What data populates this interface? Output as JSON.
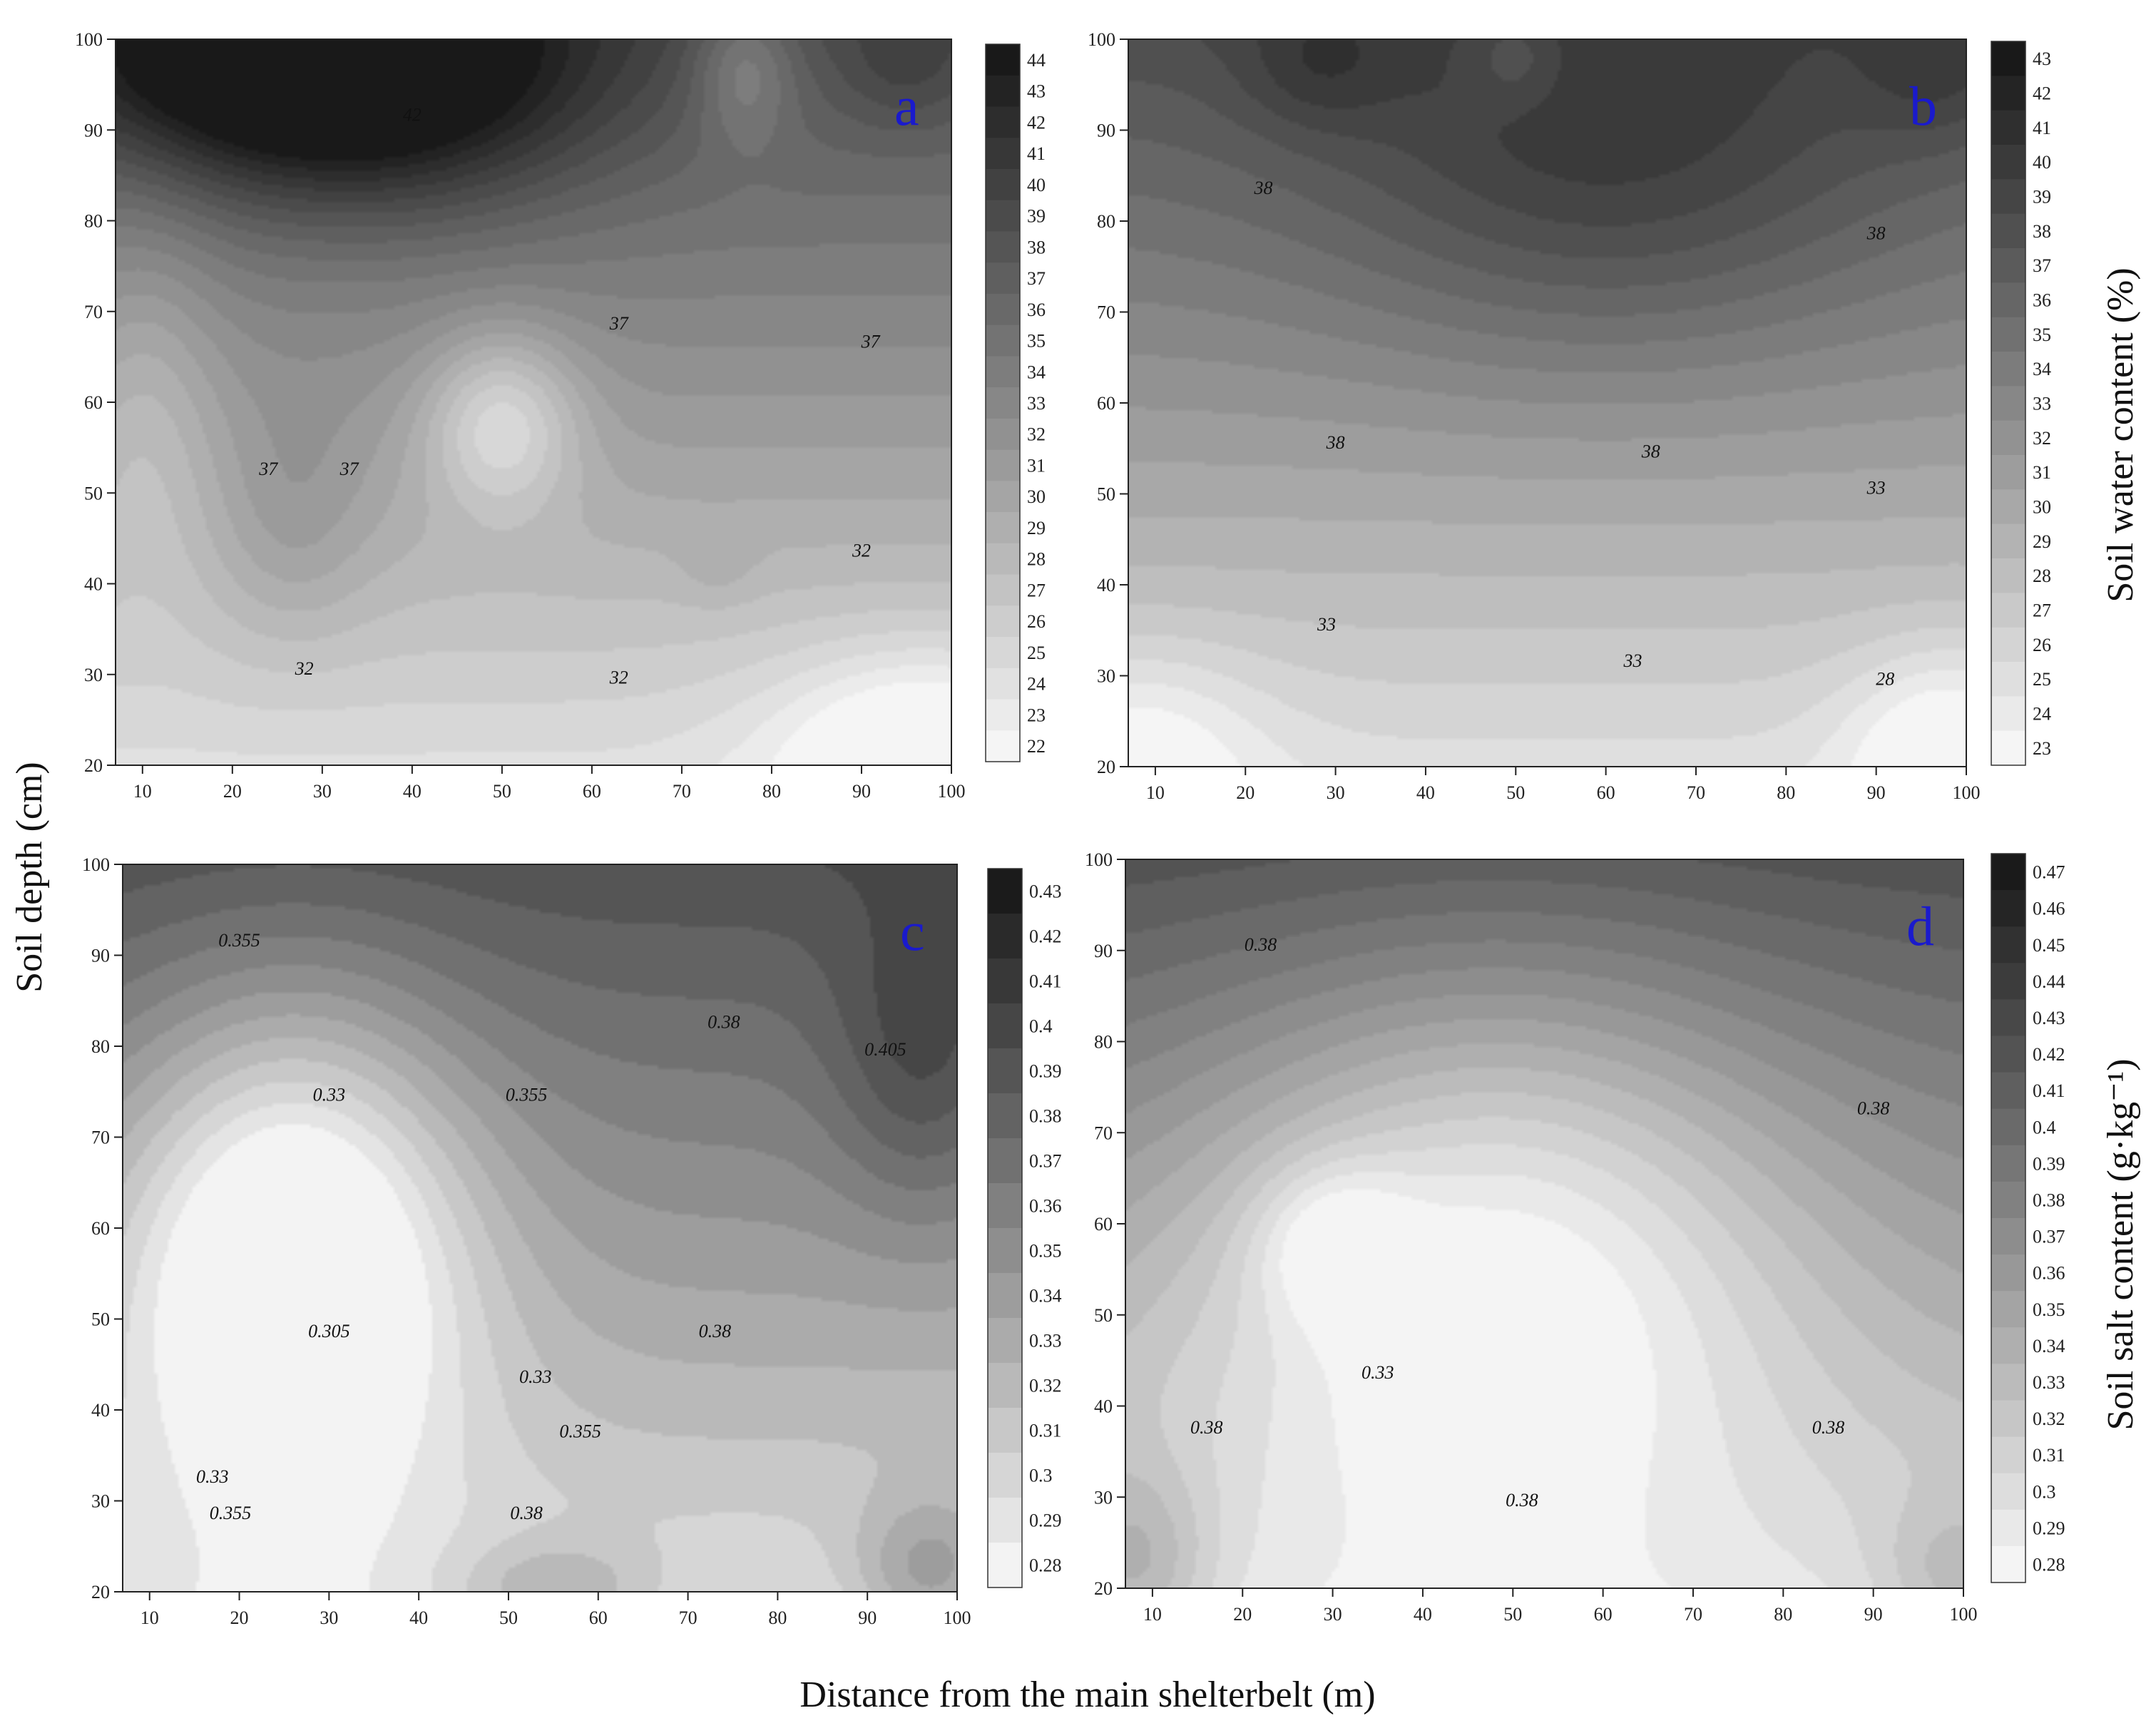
{
  "figure": {
    "ylabel": "Soil depth (cm)",
    "xlabel": "Distance from the main shelterbelt (m)",
    "colorbar_title_top": "Soil water content (%)",
    "colorbar_title_bottom": "Soil salt content (g·kg⁻¹)",
    "label_color": "#1a1acc"
  },
  "chart_data": [
    {
      "type": "heatmap",
      "panel": "a",
      "x_ticks": [
        "10",
        "20",
        "30",
        "40",
        "50",
        "60",
        "70",
        "80",
        "90",
        "100"
      ],
      "y_ticks": [
        "20",
        "30",
        "40",
        "50",
        "60",
        "70",
        "80",
        "90",
        "100"
      ],
      "xlim": [
        7,
        100
      ],
      "ylim": [
        20,
        100
      ],
      "colorbar_ticks": [
        "44",
        "43",
        "42",
        "41",
        "40",
        "39",
        "38",
        "37",
        "36",
        "35",
        "34",
        "33",
        "32",
        "31",
        "30",
        "29",
        "28",
        "27",
        "26",
        "25",
        "24",
        "23",
        "22"
      ],
      "colorbar_range": [
        22,
        44.5
      ],
      "contour_labels": [
        {
          "text": "42",
          "x": 40,
          "y": 91
        },
        {
          "text": "37",
          "x": 63,
          "y": 68
        },
        {
          "text": "37",
          "x": 91,
          "y": 66
        },
        {
          "text": "37",
          "x": 24,
          "y": 52
        },
        {
          "text": "37",
          "x": 33,
          "y": 52
        },
        {
          "text": "32",
          "x": 90,
          "y": 43
        },
        {
          "text": "32",
          "x": 28,
          "y": 30
        },
        {
          "text": "32",
          "x": 63,
          "y": 29
        }
      ],
      "features": [
        {
          "x": 35,
          "y": 96,
          "sx": 17,
          "sy": 10,
          "amp": 10
        },
        {
          "x": 18,
          "y": 98,
          "sx": 14,
          "sy": 8,
          "amp": 4
        },
        {
          "x": 95,
          "y": 97,
          "sx": 5,
          "sy": 5,
          "amp": 2
        },
        {
          "x": 77,
          "y": 97,
          "sx": 4,
          "sy": 6,
          "amp": -4
        },
        {
          "x": 50,
          "y": 58,
          "sx": 6,
          "sy": 7,
          "amp": -6
        },
        {
          "x": 27,
          "y": 46,
          "sx": 6,
          "sy": 9,
          "amp": 2
        },
        {
          "x": 74,
          "y": 42,
          "sx": 3,
          "sy": 3,
          "amp": 1
        },
        {
          "x": 97,
          "y": 22,
          "sx": 12,
          "sy": 8,
          "amp": -5
        },
        {
          "x": 10,
          "y": 60,
          "sx": 6,
          "sy": 15,
          "amp": -3
        }
      ]
    },
    {
      "type": "heatmap",
      "panel": "b",
      "x_ticks": [
        "10",
        "20",
        "30",
        "40",
        "50",
        "60",
        "70",
        "80",
        "90",
        "100"
      ],
      "y_ticks": [
        "20",
        "30",
        "40",
        "50",
        "60",
        "70",
        "80",
        "90",
        "100"
      ],
      "xlim": [
        7,
        100
      ],
      "ylim": [
        20,
        100
      ],
      "colorbar_ticks": [
        "43",
        "42",
        "41",
        "40",
        "39",
        "38",
        "37",
        "36",
        "35",
        "34",
        "33",
        "32",
        "31",
        "30",
        "29",
        "28",
        "27",
        "26",
        "25",
        "24",
        "23"
      ],
      "colorbar_range": [
        23,
        43.7
      ],
      "contour_labels": [
        {
          "text": "38",
          "x": 22,
          "y": 83
        },
        {
          "text": "38",
          "x": 90,
          "y": 78
        },
        {
          "text": "38",
          "x": 30,
          "y": 55
        },
        {
          "text": "38",
          "x": 65,
          "y": 54
        },
        {
          "text": "33",
          "x": 90,
          "y": 50
        },
        {
          "text": "33",
          "x": 29,
          "y": 35
        },
        {
          "text": "33",
          "x": 63,
          "y": 31
        },
        {
          "text": "28",
          "x": 91,
          "y": 29
        }
      ],
      "features": [
        {
          "x": 60,
          "y": 85,
          "sx": 22,
          "sy": 15,
          "amp": 4
        },
        {
          "x": 28,
          "y": 97,
          "sx": 6,
          "sy": 5,
          "amp": 2
        },
        {
          "x": 97,
          "y": 97,
          "sx": 6,
          "sy": 6,
          "amp": 2
        },
        {
          "x": 50,
          "y": 98,
          "sx": 4,
          "sy": 4,
          "amp": -2
        },
        {
          "x": 8,
          "y": 22,
          "sx": 10,
          "sy": 8,
          "amp": -3
        },
        {
          "x": 98,
          "y": 22,
          "sx": 8,
          "sy": 8,
          "amp": -4
        }
      ]
    },
    {
      "type": "heatmap",
      "panel": "c",
      "x_ticks": [
        "10",
        "20",
        "30",
        "40",
        "50",
        "60",
        "70",
        "80",
        "90",
        "100"
      ],
      "y_ticks": [
        "20",
        "30",
        "40",
        "50",
        "60",
        "70",
        "80",
        "90",
        "100"
      ],
      "xlim": [
        7,
        100
      ],
      "ylim": [
        20,
        100
      ],
      "colorbar_ticks": [
        "0.43",
        "0.42",
        "0.41",
        "0.4",
        "0.39",
        "0.38",
        "0.37",
        "0.36",
        "0.35",
        "0.34",
        "0.33",
        "0.32",
        "0.31",
        "0.3",
        "0.29",
        "0.28"
      ],
      "colorbar_range": [
        0.28,
        0.435
      ],
      "contour_labels": [
        {
          "text": "0.355",
          "x": 20,
          "y": 91
        },
        {
          "text": "0.38",
          "x": 74,
          "y": 82
        },
        {
          "text": "0.405",
          "x": 92,
          "y": 79
        },
        {
          "text": "0.33",
          "x": 30,
          "y": 74
        },
        {
          "text": "0.355",
          "x": 52,
          "y": 74
        },
        {
          "text": "0.305",
          "x": 30,
          "y": 48
        },
        {
          "text": "0.33",
          "x": 53,
          "y": 43
        },
        {
          "text": "0.38",
          "x": 73,
          "y": 48
        },
        {
          "text": "0.33",
          "x": 17,
          "y": 32
        },
        {
          "text": "0.355",
          "x": 58,
          "y": 37
        },
        {
          "text": "0.355",
          "x": 19,
          "y": 28
        },
        {
          "text": "0.38",
          "x": 52,
          "y": 28
        }
      ],
      "features": [
        {
          "x": 26,
          "y": 58,
          "sx": 14,
          "sy": 19,
          "amp": -0.09
        },
        {
          "x": 26,
          "y": 60,
          "sx": 3,
          "sy": 4,
          "amp": -0.03
        },
        {
          "x": 96,
          "y": 78,
          "sx": 7,
          "sy": 12,
          "amp": 0.03
        },
        {
          "x": 97,
          "y": 22,
          "sx": 6,
          "sy": 6,
          "amp": 0.04
        },
        {
          "x": 55,
          "y": 20,
          "sx": 8,
          "sy": 4,
          "amp": 0.03
        }
      ]
    },
    {
      "type": "heatmap",
      "panel": "d",
      "x_ticks": [
        "10",
        "20",
        "30",
        "40",
        "50",
        "60",
        "70",
        "80",
        "90",
        "100"
      ],
      "y_ticks": [
        "20",
        "30",
        "40",
        "50",
        "60",
        "70",
        "80",
        "90",
        "100"
      ],
      "xlim": [
        7,
        100
      ],
      "ylim": [
        20,
        100
      ],
      "colorbar_ticks": [
        "0.47",
        "0.46",
        "0.45",
        "0.44",
        "0.43",
        "0.42",
        "0.41",
        "0.4",
        "0.39",
        "0.38",
        "0.37",
        "0.36",
        "0.35",
        "0.34",
        "0.33",
        "0.32",
        "0.31",
        "0.3",
        "0.29",
        "0.28"
      ],
      "colorbar_range": [
        0.28,
        0.48
      ],
      "contour_labels": [
        {
          "text": "0.38",
          "x": 22,
          "y": 90
        },
        {
          "text": "0.38",
          "x": 90,
          "y": 72
        },
        {
          "text": "0.33",
          "x": 35,
          "y": 43
        },
        {
          "text": "0.38",
          "x": 16,
          "y": 37
        },
        {
          "text": "0.38",
          "x": 85,
          "y": 37
        },
        {
          "text": "0.38",
          "x": 51,
          "y": 29
        }
      ],
      "features": [
        {
          "x": 48,
          "y": 57,
          "sx": 24,
          "sy": 22,
          "amp": -0.08
        },
        {
          "x": 30,
          "y": 58,
          "sx": 6,
          "sy": 6,
          "amp": -0.035
        },
        {
          "x": 8,
          "y": 22,
          "sx": 6,
          "sy": 8,
          "amp": 0.04
        },
        {
          "x": 99,
          "y": 21,
          "sx": 6,
          "sy": 6,
          "amp": 0.03
        }
      ]
    }
  ]
}
